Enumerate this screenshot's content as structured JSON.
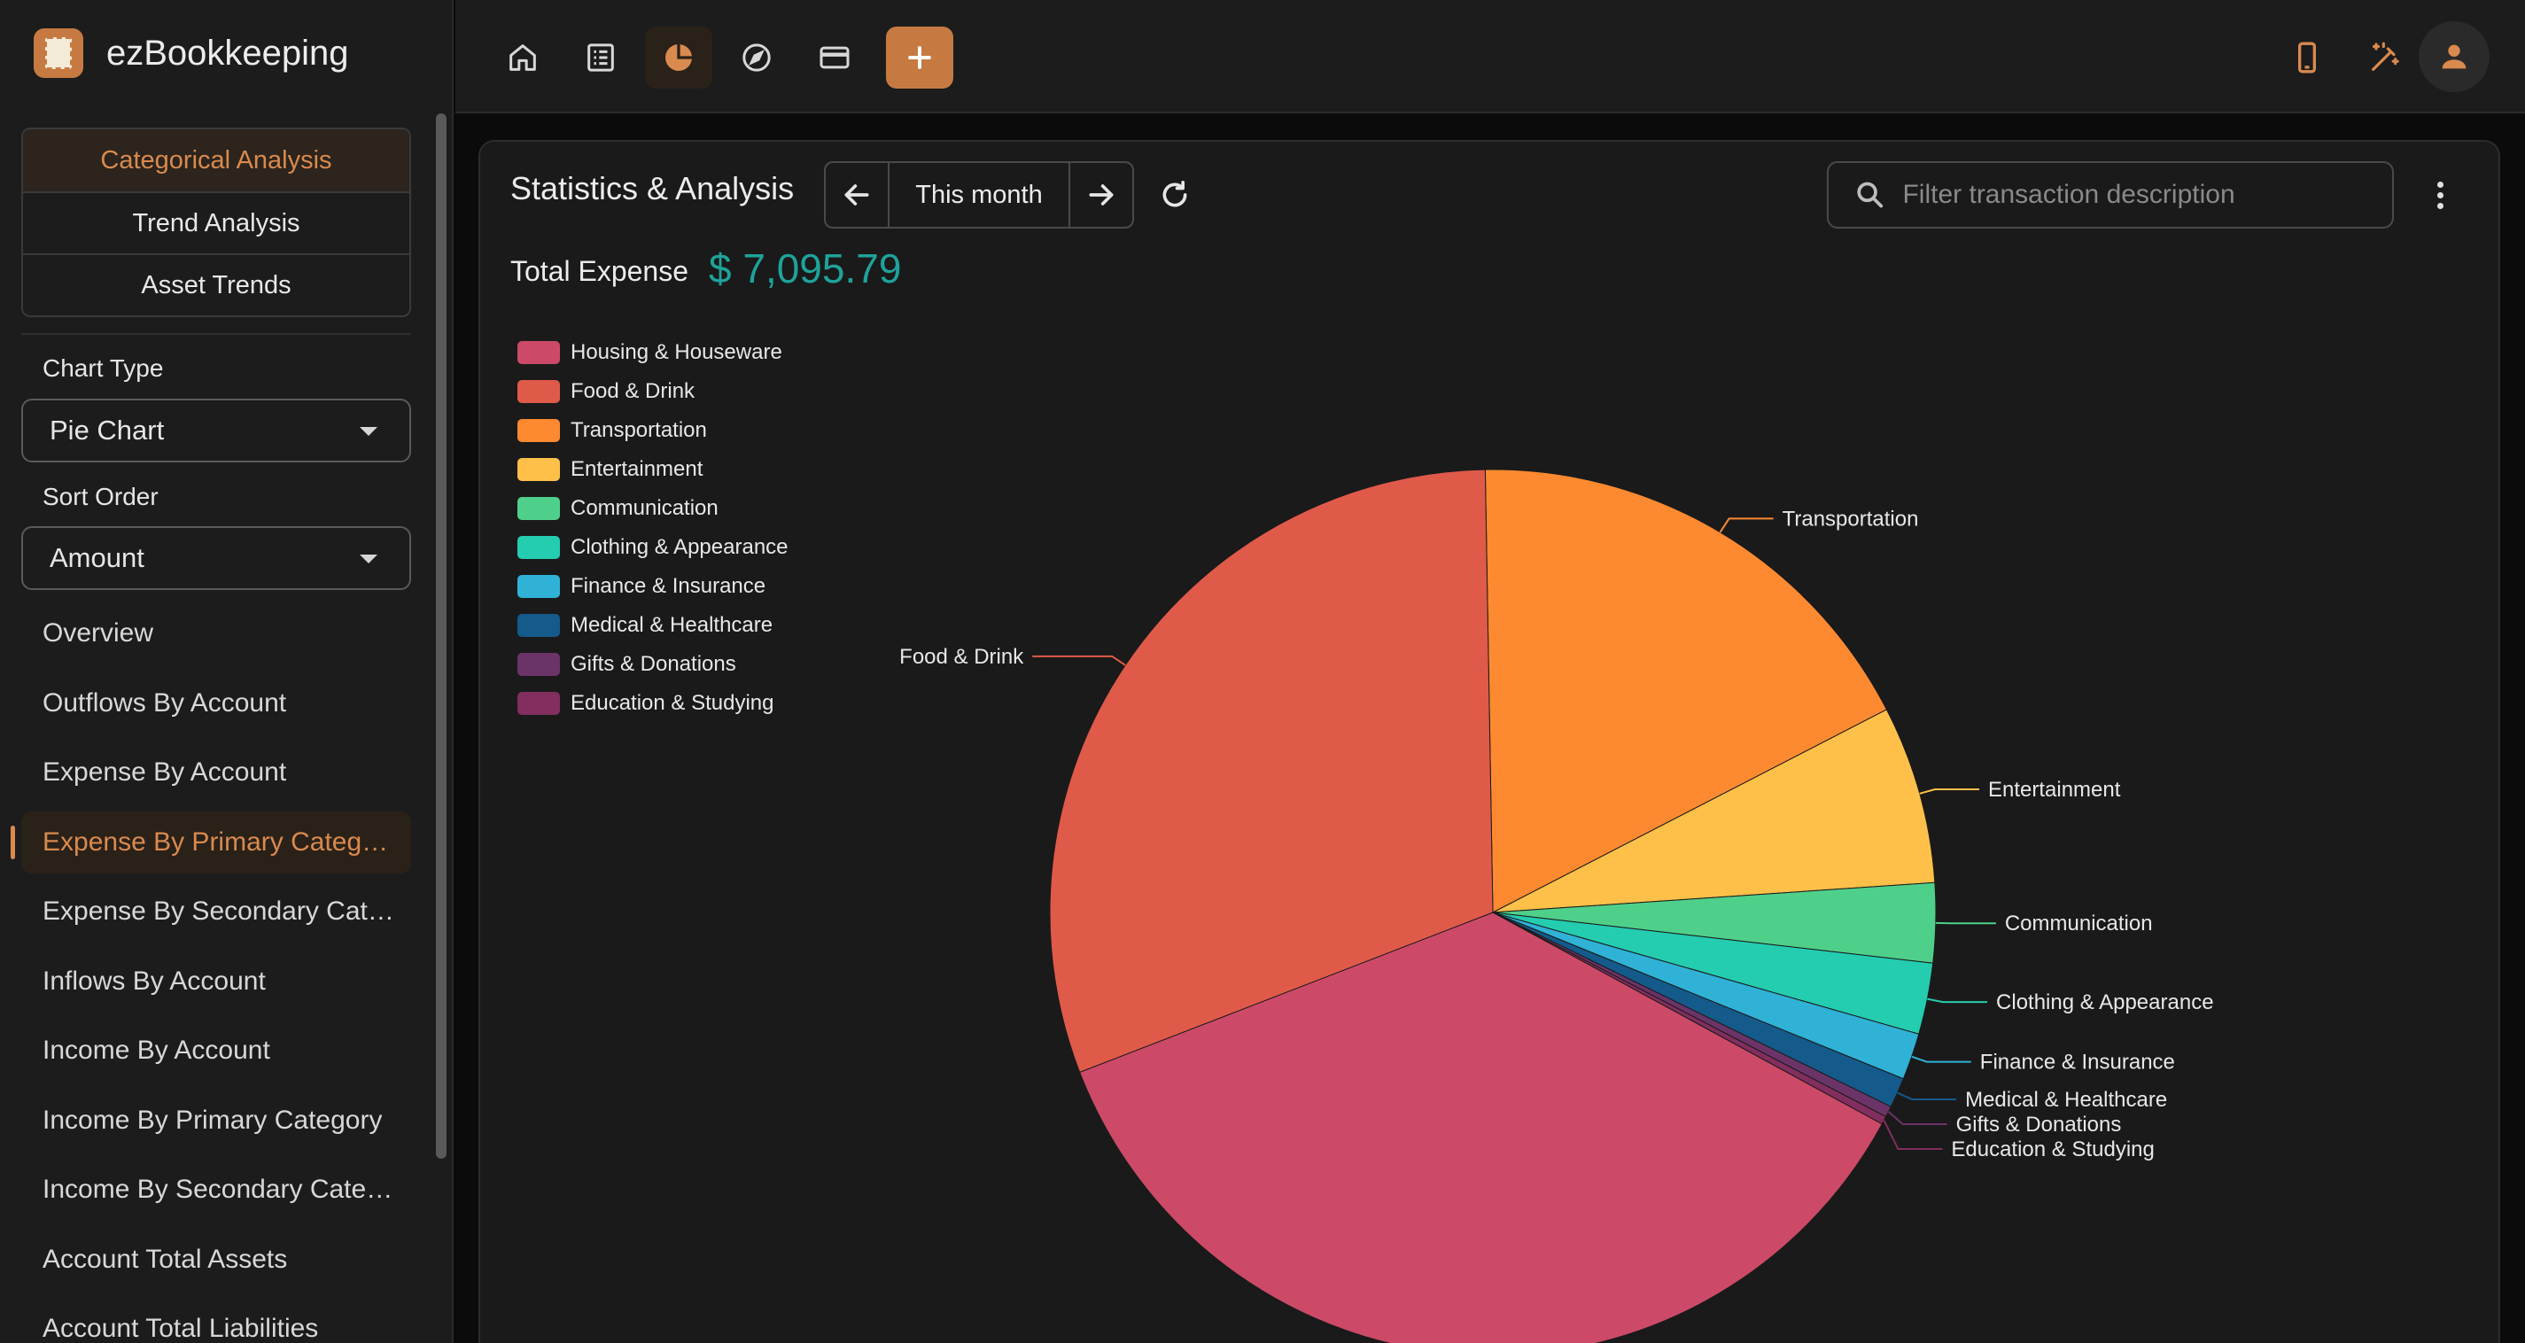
{
  "app": {
    "name": "ezBookkeeping"
  },
  "sidebar": {
    "tabs": [
      {
        "label": "Categorical Analysis"
      },
      {
        "label": "Trend Analysis"
      },
      {
        "label": "Asset Trends"
      }
    ],
    "chart_type": {
      "label": "Chart Type",
      "value": "Pie Chart"
    },
    "sort_order": {
      "label": "Sort Order",
      "value": "Amount"
    },
    "items": [
      {
        "label": "Overview"
      },
      {
        "label": "Outflows By Account"
      },
      {
        "label": "Expense By Account"
      },
      {
        "label": "Expense By Primary Category"
      },
      {
        "label": "Expense By Secondary Category"
      },
      {
        "label": "Inflows By Account"
      },
      {
        "label": "Income By Account"
      },
      {
        "label": "Income By Primary Category"
      },
      {
        "label": "Income By Secondary Category"
      },
      {
        "label": "Account Total Assets"
      },
      {
        "label": "Account Total Liabilities"
      }
    ]
  },
  "topbar": {
    "icons": [
      "home-icon",
      "list-icon",
      "pie-chart-icon",
      "compass-icon",
      "credit-card-icon",
      "plus-icon"
    ],
    "right_icons": [
      "mobile-icon",
      "theme-icon",
      "account-icon"
    ]
  },
  "main": {
    "title": "Statistics & Analysis",
    "date_range": "This month",
    "search_placeholder": "Filter transaction description",
    "total_label": "Total Expense",
    "total_value": "$ 7,095.79"
  },
  "colors": {
    "accent": "#c67a42",
    "total": "#1ea39a"
  },
  "chart_data": {
    "type": "pie",
    "title": "",
    "legend_position": "top-left",
    "series": [
      {
        "name": "Housing & Houseware",
        "value": 36.2,
        "color": "#cc4a68"
      },
      {
        "name": "Food & Drink",
        "value": 30.6,
        "color": "#e05a4a"
      },
      {
        "name": "Transportation",
        "value": 17.7,
        "color": "#fd8a30"
      },
      {
        "name": "Entertainment",
        "value": 6.5,
        "color": "#fec049"
      },
      {
        "name": "Communication",
        "value": 2.9,
        "color": "#4fd08a"
      },
      {
        "name": "Clothing & Appearance",
        "value": 2.6,
        "color": "#24ccb0"
      },
      {
        "name": "Finance & Insurance",
        "value": 1.7,
        "color": "#2fb2d6"
      },
      {
        "name": "Medical & Healthcare",
        "value": 1.1,
        "color": "#145a8a"
      },
      {
        "name": "Gifts & Donations",
        "value": 0.4,
        "color": "#6b3468"
      },
      {
        "name": "Education & Studying",
        "value": 0.3,
        "color": "#822e5e"
      }
    ]
  }
}
